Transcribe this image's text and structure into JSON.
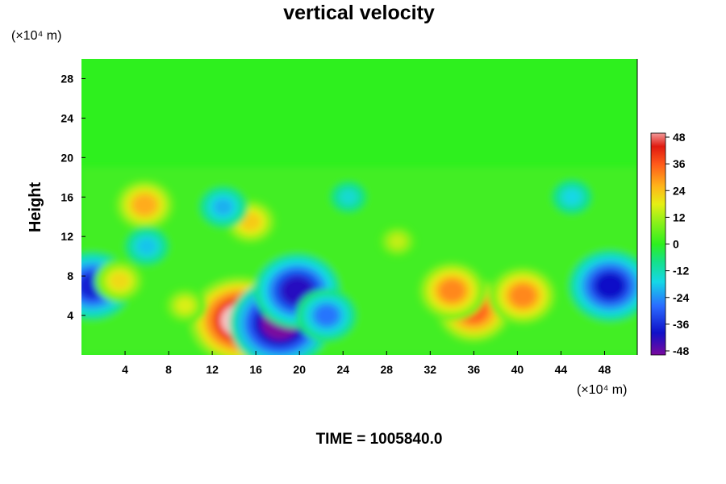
{
  "chart_data": {
    "type": "heatmap",
    "title": "vertical velocity",
    "ylabel": "Height",
    "xunit": "(×10⁴ m)",
    "yunit": "(×10⁴ m)",
    "xlim": [
      0,
      51
    ],
    "ylim": [
      0,
      30
    ],
    "xticks": [
      "4",
      "8",
      "12",
      "16",
      "20",
      "24",
      "28",
      "32",
      "36",
      "40",
      "44",
      "48"
    ],
    "yticks": [
      "4",
      "8",
      "12",
      "16",
      "20",
      "24",
      "28"
    ],
    "colorbar": {
      "range": [
        -48,
        48
      ],
      "ticks": [
        "48",
        "36",
        "24",
        "12",
        "0",
        "-12",
        "-24",
        "-36",
        "-48"
      ]
    },
    "footer": "TIME = 1005840.0",
    "features": [
      {
        "x": 14.5,
        "y": 3.5,
        "value": 48
      },
      {
        "x": 18.2,
        "y": 3.2,
        "value": -48
      },
      {
        "x": 19.8,
        "y": 6.5,
        "value": -40
      },
      {
        "x": 1.0,
        "y": 7.0,
        "value": -36
      },
      {
        "x": 48.5,
        "y": 7.0,
        "value": -38
      },
      {
        "x": 36.0,
        "y": 4.5,
        "value": 34
      },
      {
        "x": 34.0,
        "y": 6.5,
        "value": 30
      },
      {
        "x": 40.5,
        "y": 6.0,
        "value": 30
      },
      {
        "x": 5.8,
        "y": 15.2,
        "value": 26
      },
      {
        "x": 15.5,
        "y": 13.5,
        "value": 22
      },
      {
        "x": 3.5,
        "y": 7.5,
        "value": 20
      },
      {
        "x": 9.5,
        "y": 5.0,
        "value": 16
      },
      {
        "x": 22.5,
        "y": 4.0,
        "value": -26
      },
      {
        "x": 13.0,
        "y": 15.0,
        "value": -20
      },
      {
        "x": 6.0,
        "y": 11.0,
        "value": -18
      },
      {
        "x": 24.5,
        "y": 16.0,
        "value": -14
      },
      {
        "x": 45.0,
        "y": 16.0,
        "value": -16
      },
      {
        "x": 29.0,
        "y": 11.5,
        "value": 14
      }
    ]
  }
}
